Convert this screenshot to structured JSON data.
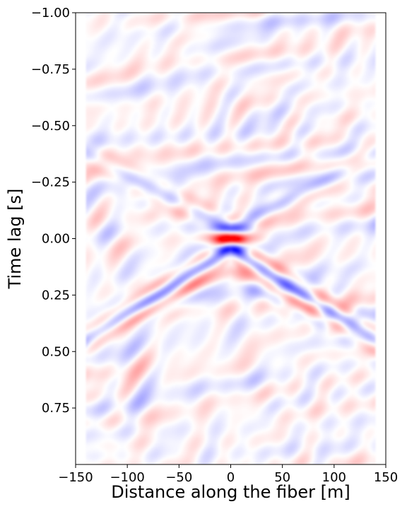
{
  "chart_data": {
    "type": "heatmap",
    "title": "",
    "xlabel": "Distance along the fiber [m]",
    "ylabel": "Time lag [s]",
    "xlim": [
      -150,
      150
    ],
    "ylim": [
      1.0,
      -1.0
    ],
    "y_axis_inverted": true,
    "x_ticks": [
      -150,
      -100,
      -50,
      0,
      50,
      100,
      150
    ],
    "x_tick_labels": [
      "−150",
      "−100",
      "−50",
      "0",
      "50",
      "100",
      "150"
    ],
    "y_ticks": [
      -1.0,
      -0.75,
      -0.5,
      -0.25,
      0.0,
      0.25,
      0.5,
      0.75
    ],
    "y_tick_labels": [
      "−1.00",
      "−0.75",
      "−0.50",
      "−0.25",
      "0.00",
      "0.25",
      "0.50",
      "0.75"
    ],
    "colormap": "bwr",
    "colors": {
      "positive": "#ff0000",
      "zero": "#ffffff",
      "negative": "#0000ff"
    },
    "data_extent_x": [
      -140,
      140
    ],
    "grid": false,
    "features": [
      {
        "kind": "peak",
        "polarity": "positive",
        "x": 0,
        "t": 0.0
      },
      {
        "kind": "peak",
        "polarity": "negative",
        "x": 0,
        "t": -0.05
      },
      {
        "kind": "peak",
        "polarity": "negative",
        "x": 0,
        "t": 0.05
      },
      {
        "kind": "causal_wavefront",
        "polarity": "negative",
        "x": [
          -140,
          140
        ],
        "t": [
          0.42,
          0.5
        ]
      },
      {
        "kind": "causal_wavefront",
        "polarity": "positive",
        "x": [
          -140,
          140
        ],
        "t": [
          0.36,
          0.44
        ]
      },
      {
        "kind": "acausal_wavefront",
        "polarity": "negative",
        "x": [
          -140,
          140
        ],
        "t": [
          -0.38,
          -0.38
        ]
      }
    ]
  }
}
